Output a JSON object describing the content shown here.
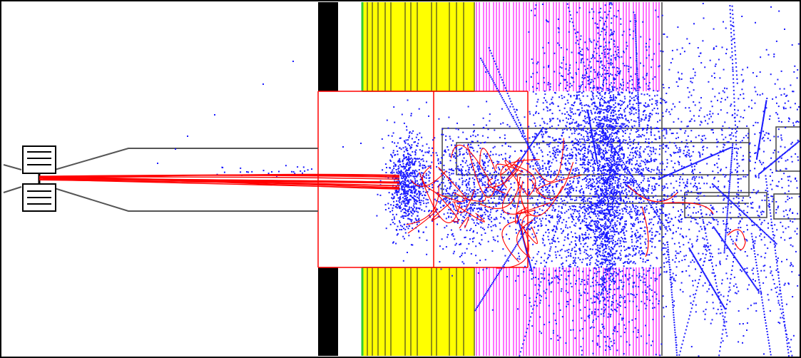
{
  "view": {
    "description_free": true
  },
  "colors": {
    "background": "#ffffff",
    "frame": "#000000",
    "absorber_black": "#000000",
    "calorimeter_yellow": "#ffff00",
    "calorimeter_outline": "#6b6b1a",
    "magenta_plates": "#ff33ff",
    "green_edge": "#33cc33",
    "beamline_gray": "#555555",
    "red_tracks": "#ff0000",
    "blue_hits": "#1a1aff"
  },
  "icons": [
    "detector-geometry",
    "particle-tracks",
    "hit-points"
  ],
  "particles": {
    "red_track_count": 38,
    "blue_hit_seed": 1234
  }
}
